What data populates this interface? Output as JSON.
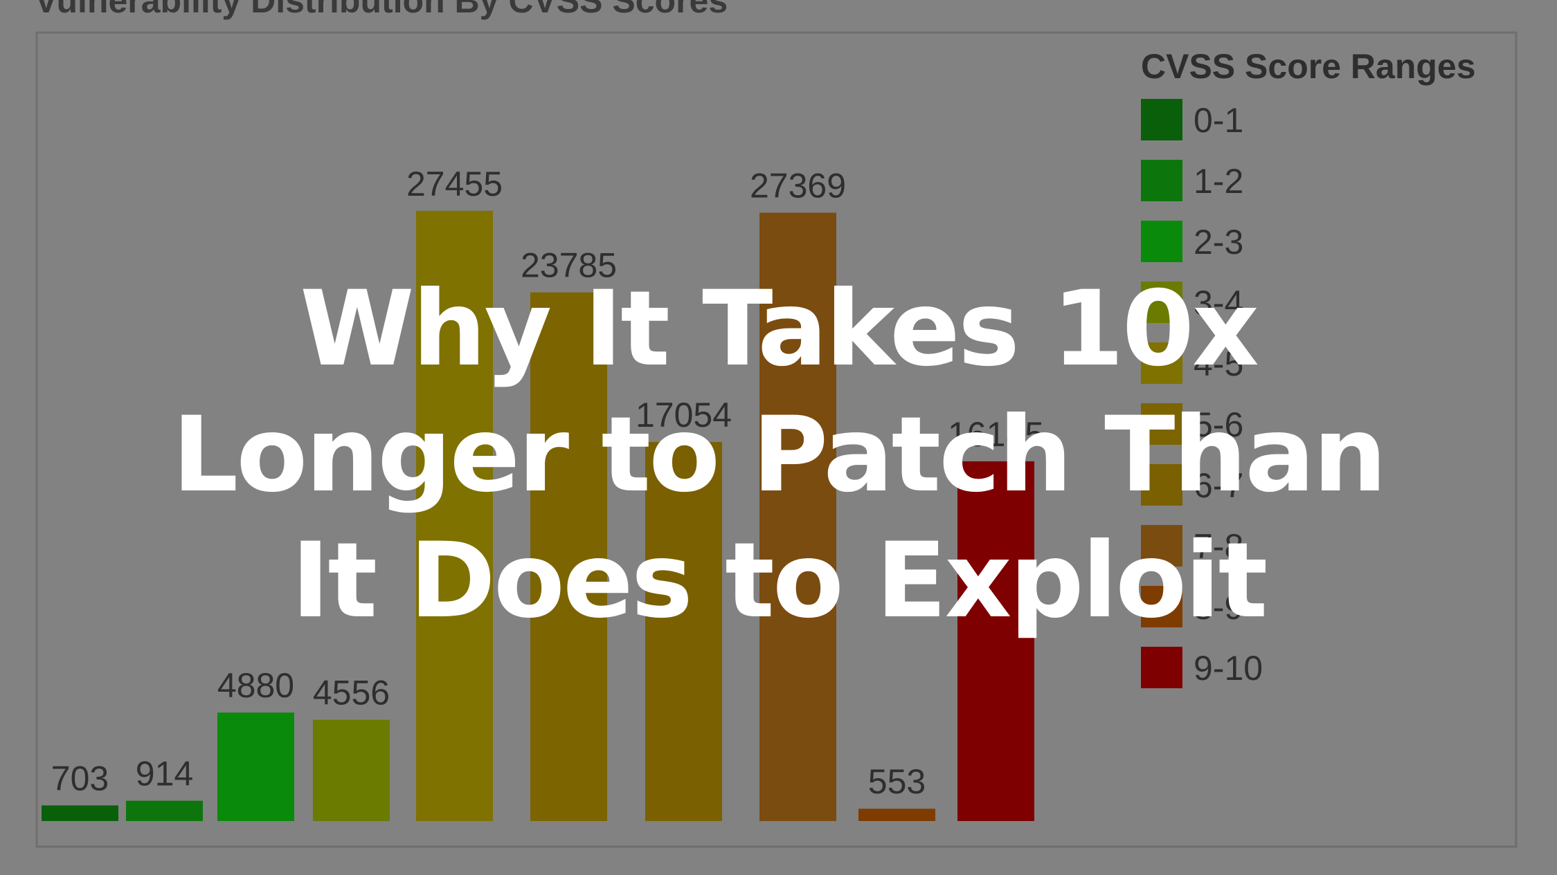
{
  "headline": {
    "lines": [
      "Why It Takes 10x",
      "Longer to Patch Than",
      "It Does to Exploit"
    ]
  },
  "chart_data": {
    "type": "bar",
    "title": "Vulnerability Distribution By CVSS Scores",
    "xlabel": "",
    "ylabel": "",
    "ylim": [
      0,
      30000
    ],
    "grid": false,
    "legend_title": "CVSS Score Ranges",
    "legend_position": "right",
    "categories": [
      "0-1",
      "1-2",
      "2-3",
      "3-4",
      "4-5",
      "5-6",
      "6-7",
      "7-8",
      "8-9",
      "9-10"
    ],
    "values": [
      703,
      914,
      4880,
      4556,
      27455,
      23785,
      17054,
      27369,
      553,
      16185
    ],
    "colors": [
      "#0a600a",
      "#0c760c",
      "#0a8a0a",
      "#6a7b00",
      "#7f7200",
      "#7c6400",
      "#7a6000",
      "#7a4c10",
      "#7f3c00",
      "#7f0000"
    ],
    "data_label_text": [
      "703",
      "914",
      "4880",
      "4556",
      "27455",
      "23785",
      "17054",
      "27369",
      "553",
      "16185"
    ]
  }
}
